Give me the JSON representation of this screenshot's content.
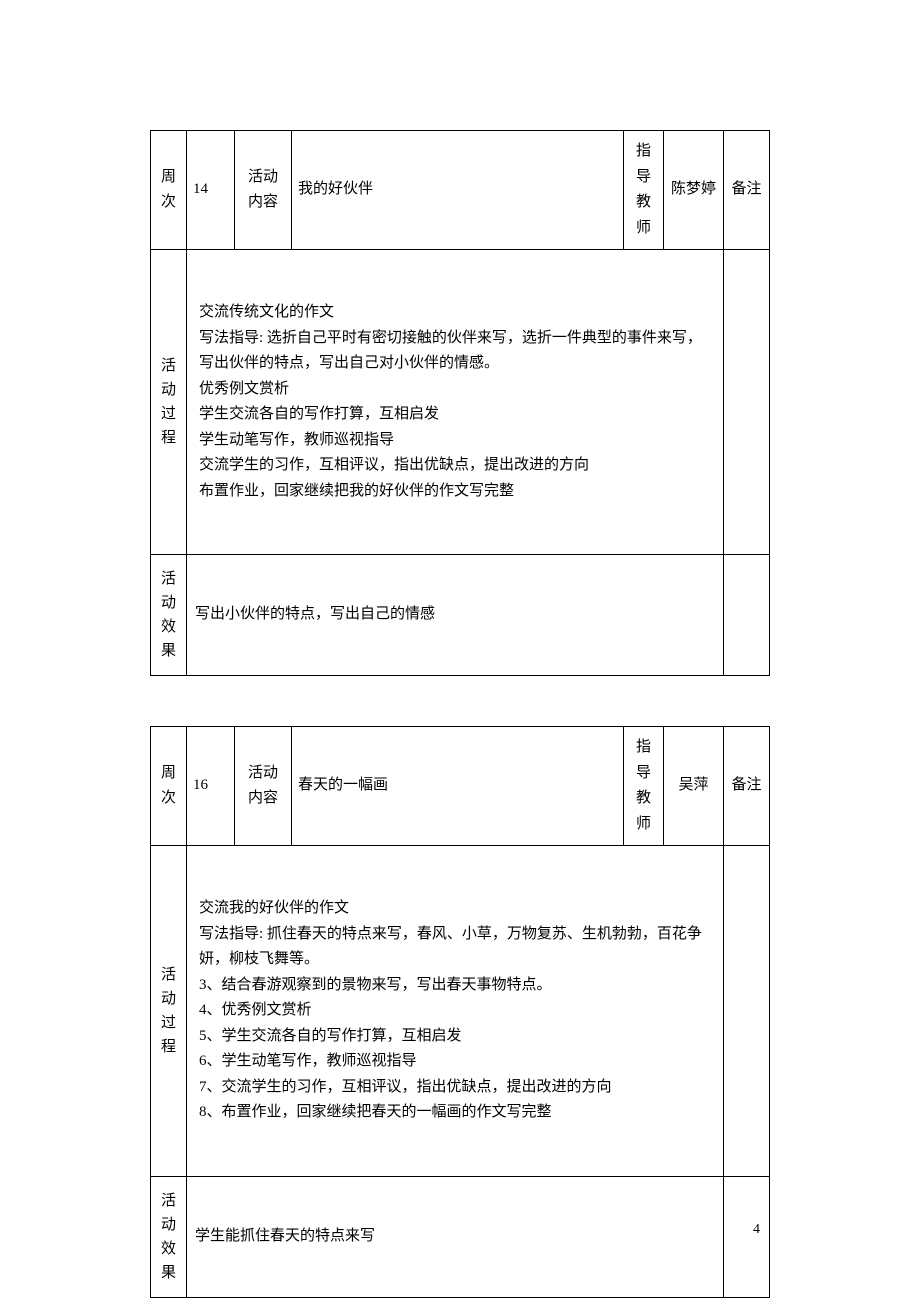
{
  "labels": {
    "week": "周次",
    "activity_content": "活动内容",
    "teacher": "指导教师",
    "note": "备注",
    "process": "活动过程",
    "effect": "活动效果"
  },
  "table1": {
    "week_num": "14",
    "title": "我的好伙伴",
    "teacher_name": "陈梦婷",
    "note": "",
    "process_lines": {
      "l0": "交流传统文化的作文",
      "l1": "写法指导: 选折自己平时有密切接触的伙伴来写，选折一件典型的事件来写，写出伙伴的特点，写出自己对小伙伴的情感。",
      "l2": "优秀例文赏析",
      "l3": "学生交流各自的写作打算，互相启发",
      "l4": "学生动笔写作，教师巡视指导",
      "l5": "交流学生的习作，互相评议，指出优缺点，提出改进的方向",
      "l6": "布置作业，回家继续把我的好伙伴的作文写完整"
    },
    "effect": "写出小伙伴的特点，写出自己的情感"
  },
  "table2": {
    "week_num": "16",
    "title": "春天的一幅画",
    "teacher_name": "吴萍",
    "note": "",
    "process_lines": {
      "l0": "交流我的好伙伴的作文",
      "l1": "写法指导: 抓住春天的特点来写，春风、小草，万物复苏、生机勃勃，百花争妍，柳枝飞舞等。",
      "l2": "3、结合春游观察到的景物来写，写出春天事物特点。",
      "l3": "4、优秀例文赏析",
      "l4": "5、学生交流各自的写作打算，互相启发",
      "l5": "6、学生动笔写作，教师巡视指导",
      "l6": "7、交流学生的习作，互相评议，指出优缺点，提出改进的方向",
      "l7": "8、布置作业，回家继续把春天的一幅画的作文写完整"
    },
    "effect": "学生能抓住春天的特点来写"
  },
  "page_number": "4"
}
